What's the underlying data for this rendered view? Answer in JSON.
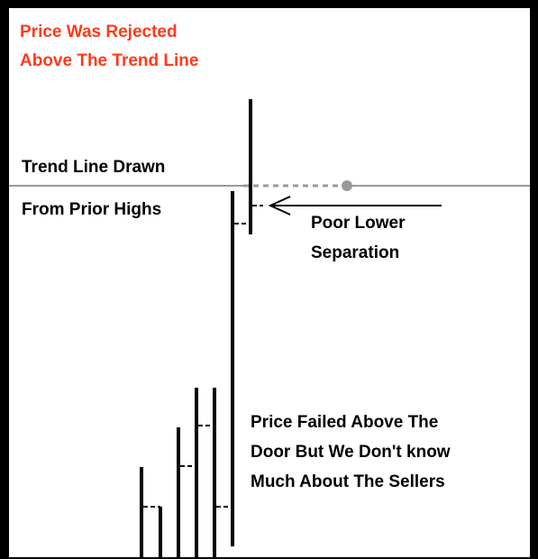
{
  "title": {
    "lines": [
      "Price Was Rejected",
      "Above The Trend Line"
    ]
  },
  "trend_note": {
    "lines": [
      "Trend Line Drawn",
      "From Prior Highs"
    ]
  },
  "separation_note": {
    "lines": [
      "Poor Lower",
      "Separation"
    ]
  },
  "failure_note": {
    "lines": [
      "Price Failed Above The",
      "Door But We Don't know",
      "Much About The Sellers"
    ]
  }
}
